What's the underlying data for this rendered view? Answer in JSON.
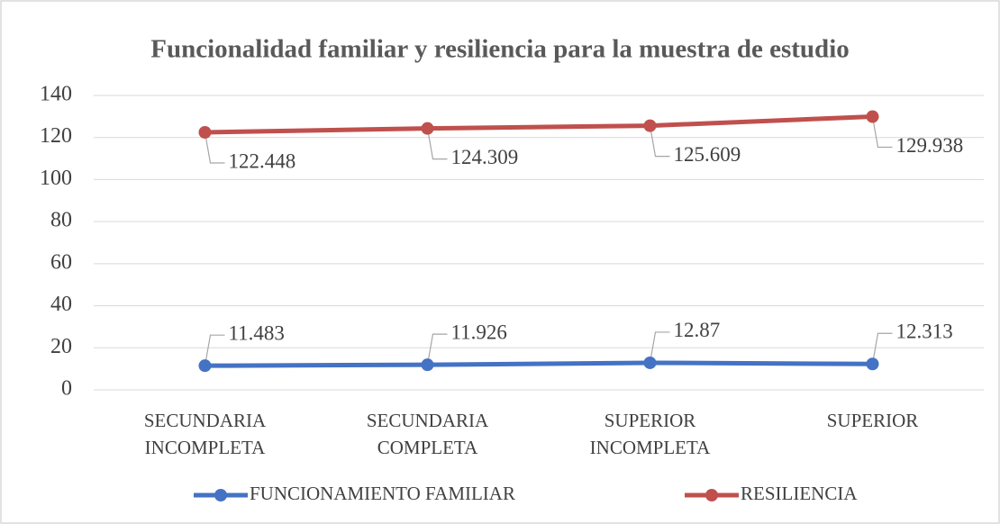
{
  "chart_data": {
    "type": "line",
    "title": "Funcionalidad familiar y resiliencia para la muestra de estudio",
    "categories": [
      "SECUNDARIA INCOMPLETA",
      "SECUNDARIA COMPLETA",
      "SUPERIOR INCOMPLETA",
      "SUPERIOR"
    ],
    "series": [
      {
        "name": "FUNCIONAMIENTO FAMILIAR",
        "color": "#4472c4",
        "values": [
          11.483,
          11.926,
          12.87,
          12.313
        ]
      },
      {
        "name": "RESILIENCIA",
        "color": "#c0504d",
        "values": [
          122.448,
          124.309,
          125.609,
          129.938
        ]
      }
    ],
    "ylim": [
      0,
      140
    ],
    "yticks": [
      0,
      20,
      40,
      60,
      80,
      100,
      120,
      140
    ],
    "grid": true,
    "legend": "bottom"
  }
}
